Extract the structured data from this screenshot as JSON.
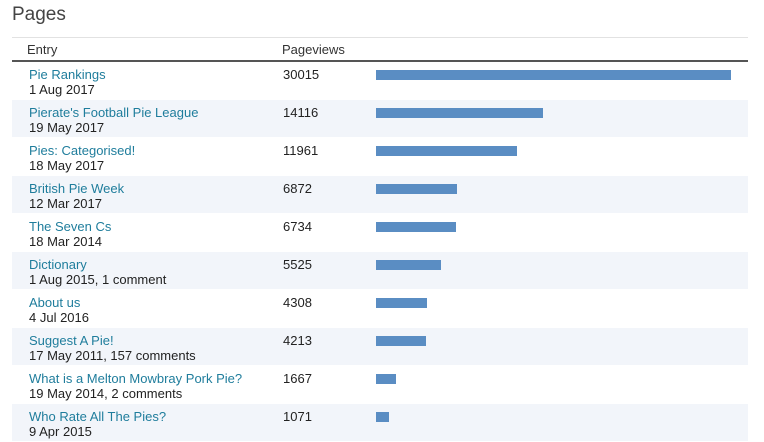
{
  "title": "Pages",
  "columns": {
    "entry": "Entry",
    "pageviews": "Pageviews"
  },
  "bar_color": "#5a8dc3",
  "max_views": 30015,
  "rows": [
    {
      "title": "Pie Rankings",
      "meta": "1 Aug 2017",
      "views": 30015
    },
    {
      "title": "Pierate's Football Pie League",
      "meta": "19 May 2017",
      "views": 14116
    },
    {
      "title": "Pies: Categorised!",
      "meta": "18 May 2017",
      "views": 11961
    },
    {
      "title": "British Pie Week",
      "meta": "12 Mar 2017",
      "views": 6872
    },
    {
      "title": "The Seven Cs",
      "meta": "18 Mar 2014",
      "views": 6734
    },
    {
      "title": "Dictionary",
      "meta": "1 Aug 2015, 1 comment",
      "views": 5525
    },
    {
      "title": "About us",
      "meta": "4 Jul 2016",
      "views": 4308
    },
    {
      "title": "Suggest A Pie!",
      "meta": "17 May 2011, 157 comments",
      "views": 4213
    },
    {
      "title": "What is a Melton Mowbray Pork Pie?",
      "meta": "19 May 2014, 2 comments",
      "views": 1667
    },
    {
      "title": "Who Rate All The Pies?",
      "meta": "9 Apr 2015",
      "views": 1071
    }
  ]
}
